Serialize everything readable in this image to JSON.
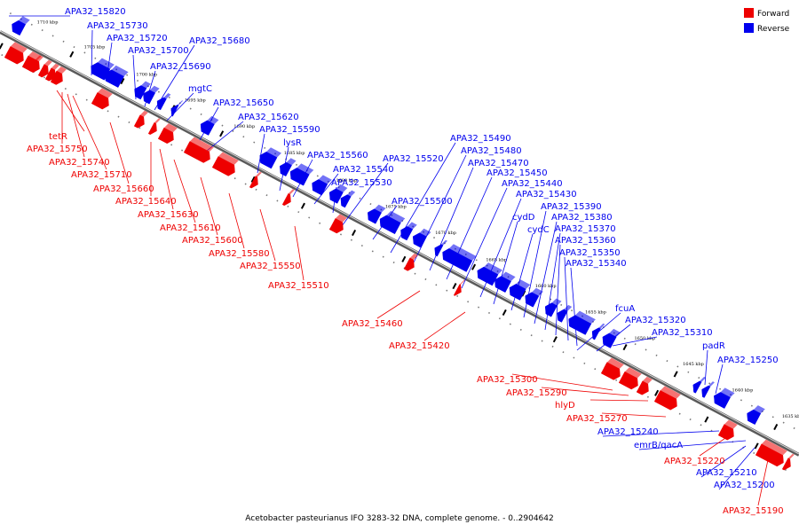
{
  "caption": "Acetobacter pasteurianus IFO 3283-32 DNA, complete genome. - 0..2904642",
  "legend": [
    {
      "label": "Forward",
      "color": "#ee0000"
    },
    {
      "label": "Reverse",
      "color": "#0000ee"
    }
  ],
  "colors": {
    "forward": "#ee0000",
    "reverse": "#0000ee",
    "backbone": "#8a8a8a"
  },
  "ticks": [
    "1710 kbp",
    "1705 kbp",
    "1700 kbp",
    "1695 kbp",
    "1690 kbp",
    "1685 kbp",
    "1680 kbp",
    "1675 kbp",
    "1670 kbp",
    "1665 kbp",
    "1660 kbp",
    "1655 kbp",
    "1650 kbp",
    "1645 kbp",
    "1640 kbp",
    "1635 kbp"
  ],
  "reverse_genes": [
    "APA32_15820",
    "APA32_15730",
    "APA32_15720",
    "APA32_15700",
    "APA32_15690",
    "APA32_15680",
    "mgtC",
    "APA32_15650",
    "APA32_15620",
    "APA32_15590",
    "lysR",
    "APA32_15560",
    "APA32_15540",
    "APA32_15530",
    "APA32_15520",
    "APA32_15500",
    "APA32_15490",
    "APA32_15480",
    "APA32_15470",
    "APA32_15450",
    "APA32_15440",
    "APA32_15430",
    "cydD",
    "cydC",
    "APA32_15390",
    "APA32_15380",
    "APA32_15370",
    "APA32_15360",
    "APA32_15350",
    "APA32_15340",
    "fcuA",
    "APA32_15320",
    "APA32_15310",
    "padR",
    "APA32_15250",
    "APA32_15240",
    "emrB/qacA",
    "APA32_15210",
    "APA32_15200"
  ],
  "forward_genes": [
    "tetR",
    "APA32_15750",
    "APA32_15740",
    "APA32_15710",
    "APA32_15660",
    "APA32_15640",
    "APA32_15630",
    "APA32_15610",
    "APA32_15600",
    "APA32_15580",
    "APA32_15550",
    "APA32_15510",
    "APA32_15460",
    "APA32_15420",
    "APA32_15300",
    "APA32_15290",
    "hlyD",
    "APA32_15270",
    "APA32_15220",
    "APA32_15190"
  ]
}
